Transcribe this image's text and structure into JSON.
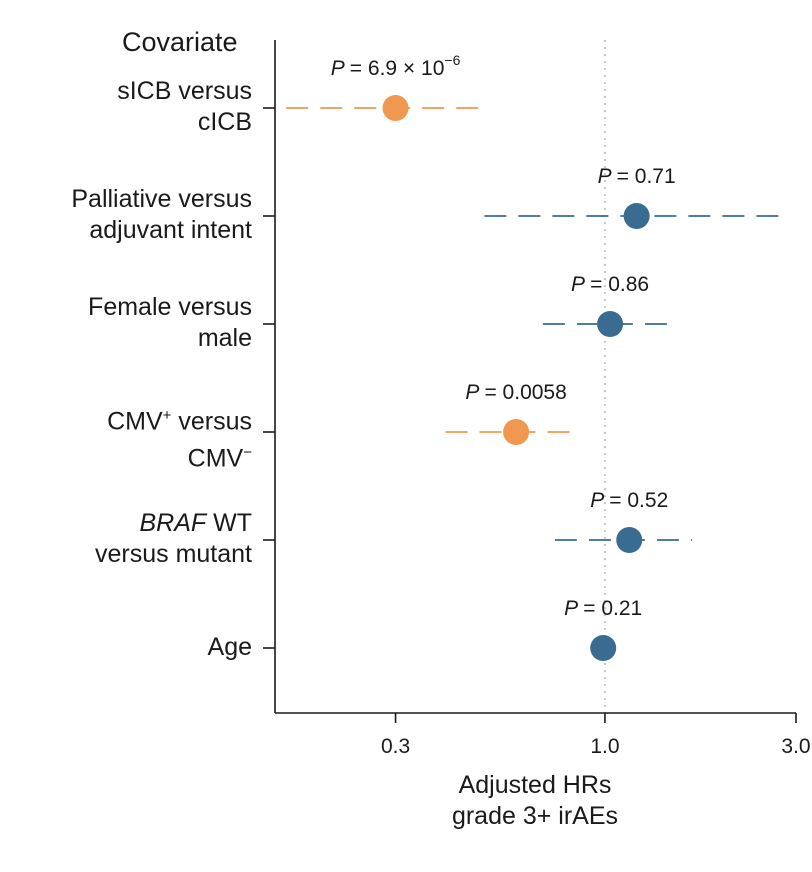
{
  "chart_data": {
    "type": "forest",
    "title": "",
    "column_header": "Covariate",
    "xlabel_line1": "Adjusted HRs",
    "xlabel_line2": "grade 3+ irAEs",
    "xscale": "log",
    "xlim": [
      0.15,
      3.0
    ],
    "xticks": [
      {
        "value": 0.3,
        "label": "0.3"
      },
      {
        "value": 1.0,
        "label": "1.0"
      },
      {
        "value": 3.0,
        "label": "3.0"
      }
    ],
    "reference_line": 1.0,
    "colors": {
      "significant": "#F0984F",
      "nonsignificant": "#3A6C91",
      "axis": "#1a1a1a",
      "refline": "#c8c8c8"
    },
    "rows": [
      {
        "id": "sicb",
        "label_line1": "sICB versus",
        "label_line2": "cICB",
        "hr": 0.3,
        "ci_low": 0.16,
        "ci_high": 0.5,
        "significant": true,
        "p_label": "= 6.9 × 10",
        "p_exp": "−6"
      },
      {
        "id": "intent",
        "label_line1": "Palliative versus",
        "label_line2": "adjuvant intent",
        "hr": 1.2,
        "ci_low": 0.5,
        "ci_high": 2.8,
        "significant": false,
        "p_label": "= 0.71",
        "p_exp": ""
      },
      {
        "id": "sex",
        "label_line1": "Female versus",
        "label_line2": "male",
        "hr": 1.03,
        "ci_low": 0.7,
        "ci_high": 1.5,
        "significant": false,
        "p_label": "= 0.86",
        "p_exp": ""
      },
      {
        "id": "cmv",
        "label_line1": "CMV",
        "label_line1_sup": "+",
        "label_line1_rest": " versus",
        "label_line2": "CMV",
        "label_line2_sup": "−",
        "hr": 0.6,
        "ci_low": 0.4,
        "ci_high": 0.85,
        "significant": true,
        "p_label": "= 0.0058",
        "p_exp": ""
      },
      {
        "id": "braf",
        "label_line1_italic": "BRAF",
        "label_line1_rest": " WT",
        "label_line2": "versus mutant",
        "hr": 1.15,
        "ci_low": 0.75,
        "ci_high": 1.65,
        "significant": false,
        "p_label": "= 0.52",
        "p_exp": ""
      },
      {
        "id": "age",
        "label_line1": "Age",
        "label_line2": "",
        "hr": 0.99,
        "ci_low": 0.97,
        "ci_high": 1.01,
        "significant": false,
        "p_label": "= 0.21",
        "p_exp": ""
      }
    ],
    "p_prefix": "P"
  }
}
